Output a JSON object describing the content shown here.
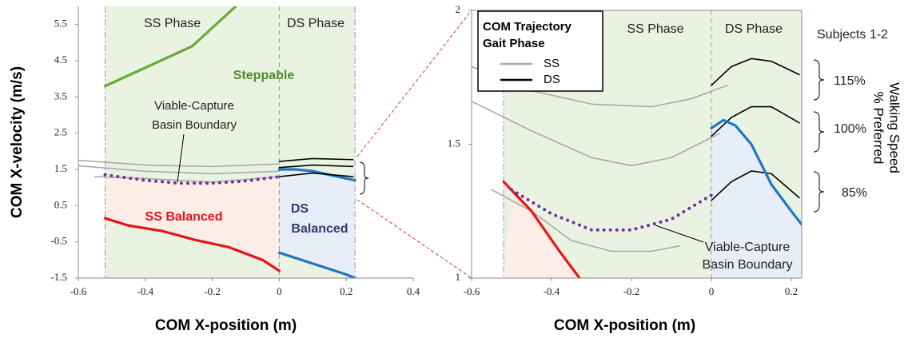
{
  "chart_data": [
    {
      "type": "line",
      "xlabel": "COM X-position (m)",
      "ylabel": "COM X-velocity (m/s)",
      "xlim": [
        -0.6,
        0.4
      ],
      "ylim": [
        -1.5,
        6
      ],
      "xticks": [
        -0.6,
        -0.4,
        -0.2,
        0,
        0.2,
        0.4
      ],
      "yticks": [
        -1.5,
        -0.5,
        0.5,
        1.5,
        2.5,
        3.5,
        4.5,
        5.5
      ],
      "phase_boundaries": [
        -0.52,
        0,
        0.226
      ],
      "annotations": [
        "SS Phase",
        "DS Phase",
        "Steppable",
        "Viable-Capture",
        "Basin Boundary",
        "SS Balanced",
        "DS",
        "Balanced"
      ],
      "series": [
        {
          "color": "#6aaa3a",
          "x": [
            -0.52,
            -0.26,
            -0.13
          ],
          "values": [
            3.8,
            4.9,
            6.0
          ]
        },
        {
          "color": "#e8141c",
          "x": [
            -0.52,
            -0.45,
            -0.35,
            -0.25,
            -0.15,
            -0.05,
            0
          ],
          "values": [
            0.15,
            -0.05,
            -0.2,
            -0.45,
            -0.65,
            -1.0,
            -1.3
          ]
        },
        {
          "color": "#1f78c1",
          "x": [
            0,
            0.05,
            0.1,
            0.15,
            0.2,
            0.226
          ],
          "values": [
            -0.8,
            -0.95,
            -1.1,
            -1.25,
            -1.4,
            -1.5
          ]
        },
        {
          "color": "#1f78c1",
          "x": [
            0,
            0.05,
            0.1,
            0.15,
            0.2,
            0.226
          ],
          "values": [
            1.5,
            1.5,
            1.45,
            1.35,
            1.25,
            1.2
          ]
        },
        {
          "color": "#aaaaaa",
          "x": [
            -0.6,
            -0.4,
            -0.2,
            0
          ],
          "values": [
            1.75,
            1.62,
            1.58,
            1.65
          ]
        },
        {
          "color": "#aaaaaa",
          "x": [
            -0.6,
            -0.4,
            -0.2,
            0
          ],
          "values": [
            1.6,
            1.45,
            1.38,
            1.45
          ]
        },
        {
          "color": "#aaaaaa",
          "x": [
            -0.55,
            -0.4,
            -0.2,
            0
          ],
          "values": [
            1.3,
            1.25,
            1.15,
            1.3
          ]
        },
        {
          "color": "#000000",
          "x": [
            0,
            0.1,
            0.22
          ],
          "values": [
            1.72,
            1.8,
            1.77
          ]
        },
        {
          "color": "#000000",
          "x": [
            0,
            0.1,
            0.22
          ],
          "values": [
            1.55,
            1.62,
            1.58
          ]
        },
        {
          "color": "#000000",
          "x": [
            0,
            0.1,
            0.22
          ],
          "values": [
            1.3,
            1.4,
            1.3
          ]
        },
        {
          "color": "#7030a0",
          "style": "dotted",
          "x": [
            -0.52,
            -0.4,
            -0.3,
            -0.2,
            -0.1,
            0
          ],
          "values": [
            1.35,
            1.2,
            1.12,
            1.12,
            1.18,
            1.3
          ]
        }
      ]
    },
    {
      "type": "line",
      "xlabel": "COM X-position (m)",
      "xlim": [
        -0.6,
        0.226
      ],
      "ylim": [
        1,
        2
      ],
      "xticks": [
        -0.6,
        -0.4,
        -0.2,
        0,
        0.2
      ],
      "yticks": [
        1,
        1.5,
        2
      ],
      "phase_boundaries": [
        -0.52,
        0,
        0.226
      ],
      "annotations": [
        "SS Phase",
        "DS Phase",
        "Viable-Capture",
        "Basin Boundary",
        "Subjects 1-2",
        "115%",
        "100%",
        "85%",
        "% Preferred",
        "Walking Speed"
      ],
      "legend": {
        "title": [
          "COM Trajectory",
          "Gait Phase"
        ],
        "items": [
          {
            "name": "SS",
            "color": "#aaaaaa"
          },
          {
            "name": "DS",
            "color": "#000000"
          }
        ]
      },
      "series": [
        {
          "color": "#aaaaaa",
          "x": [
            -0.6,
            -0.45,
            -0.3,
            -0.15,
            -0.05,
            0.04
          ],
          "values": [
            1.79,
            1.7,
            1.65,
            1.64,
            1.67,
            1.72
          ]
        },
        {
          "color": "#aaaaaa",
          "x": [
            -0.6,
            -0.45,
            -0.3,
            -0.2,
            -0.1,
            0.02
          ],
          "values": [
            1.66,
            1.55,
            1.45,
            1.42,
            1.45,
            1.54
          ]
        },
        {
          "color": "#aaaaaa",
          "x": [
            -0.55,
            -0.45,
            -0.35,
            -0.25,
            -0.15,
            -0.08
          ],
          "values": [
            1.33,
            1.25,
            1.14,
            1.1,
            1.1,
            1.12
          ]
        },
        {
          "color": "#000000",
          "x": [
            0,
            0.05,
            0.1,
            0.15,
            0.22
          ],
          "values": [
            1.72,
            1.79,
            1.82,
            1.81,
            1.76
          ]
        },
        {
          "color": "#000000",
          "x": [
            0,
            0.05,
            0.1,
            0.15,
            0.22
          ],
          "values": [
            1.53,
            1.6,
            1.64,
            1.64,
            1.58
          ]
        },
        {
          "color": "#000000",
          "x": [
            0,
            0.05,
            0.1,
            0.15,
            0.22
          ],
          "values": [
            1.29,
            1.36,
            1.4,
            1.39,
            1.3
          ]
        },
        {
          "color": "#e8141c",
          "x": [
            -0.52,
            -0.45,
            -0.38,
            -0.33
          ],
          "values": [
            1.36,
            1.25,
            1.1,
            1.0
          ]
        },
        {
          "color": "#1f78c1",
          "x": [
            0,
            0.03,
            0.06,
            0.1,
            0.15,
            0.2,
            0.226
          ],
          "values": [
            1.56,
            1.59,
            1.57,
            1.5,
            1.35,
            1.25,
            1.2
          ]
        },
        {
          "color": "#7030a0",
          "style": "dotted",
          "x": [
            -0.5,
            -0.4,
            -0.3,
            -0.2,
            -0.1,
            0
          ],
          "values": [
            1.33,
            1.24,
            1.18,
            1.18,
            1.22,
            1.31
          ]
        }
      ]
    }
  ]
}
